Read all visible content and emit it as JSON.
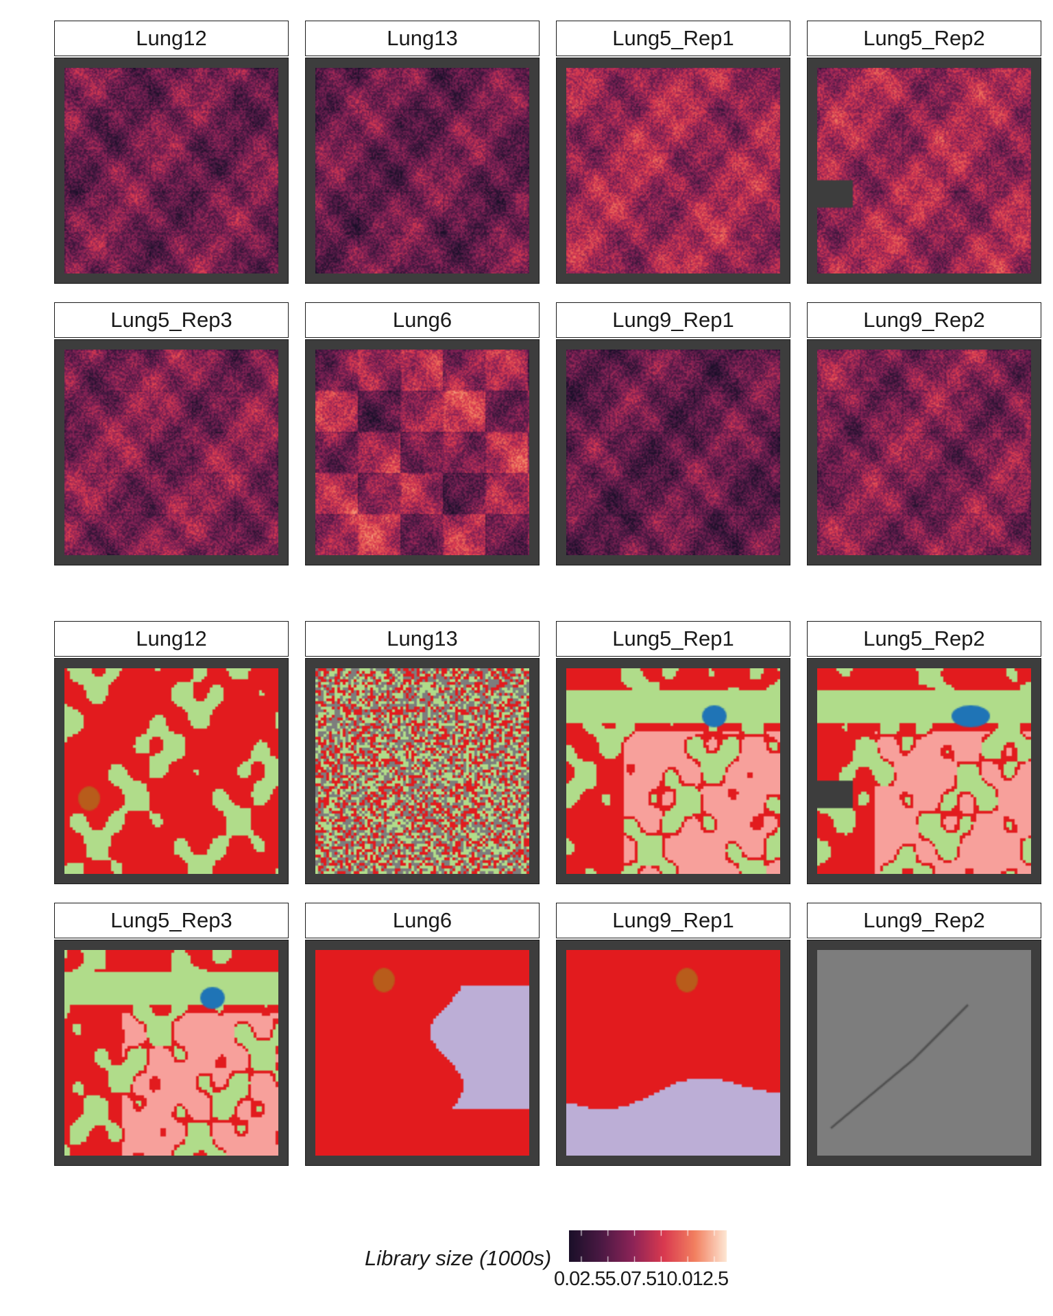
{
  "colors": {
    "strip_bg": "#ffffff",
    "frame_bg": "#3d3d3d",
    "cluster_red": "#e21b1e",
    "cluster_green": "#b0dc8a",
    "cluster_pink": "#f7a09b",
    "cluster_blue": "#1f74b6",
    "cluster_brown": "#b85c1b",
    "cluster_lavender": "#bcaed6",
    "cluster_grey": "#7d7d7d",
    "colormap": [
      "#1b0f29",
      "#4a1943",
      "#8b2357",
      "#d9394f",
      "#f28060",
      "#fde6d3"
    ]
  },
  "top_grid": {
    "panels": [
      {
        "label": "Lung12",
        "fill": "library-size"
      },
      {
        "label": "Lung13",
        "fill": "library-size"
      },
      {
        "label": "Lung5_Rep1",
        "fill": "library-size"
      },
      {
        "label": "Lung5_Rep2",
        "fill": "library-size"
      },
      {
        "label": "Lung5_Rep3",
        "fill": "library-size"
      },
      {
        "label": "Lung6",
        "fill": "library-size"
      },
      {
        "label": "Lung9_Rep1",
        "fill": "library-size"
      },
      {
        "label": "Lung9_Rep2",
        "fill": "library-size"
      }
    ]
  },
  "bottom_grid": {
    "panels": [
      {
        "label": "Lung12",
        "fill": "clusters"
      },
      {
        "label": "Lung13",
        "fill": "clusters"
      },
      {
        "label": "Lung5_Rep1",
        "fill": "clusters"
      },
      {
        "label": "Lung5_Rep2",
        "fill": "clusters"
      },
      {
        "label": "Lung5_Rep3",
        "fill": "clusters"
      },
      {
        "label": "Lung6",
        "fill": "clusters"
      },
      {
        "label": "Lung9_Rep1",
        "fill": "clusters"
      },
      {
        "label": "Lung9_Rep2",
        "fill": "clusters"
      }
    ]
  },
  "legend": {
    "title": "Library size (1000s)",
    "tick_text": "0.02.55.07.510.012.5",
    "ticks": [
      0.0,
      2.5,
      5.0,
      7.5,
      10.0,
      12.5
    ]
  }
}
